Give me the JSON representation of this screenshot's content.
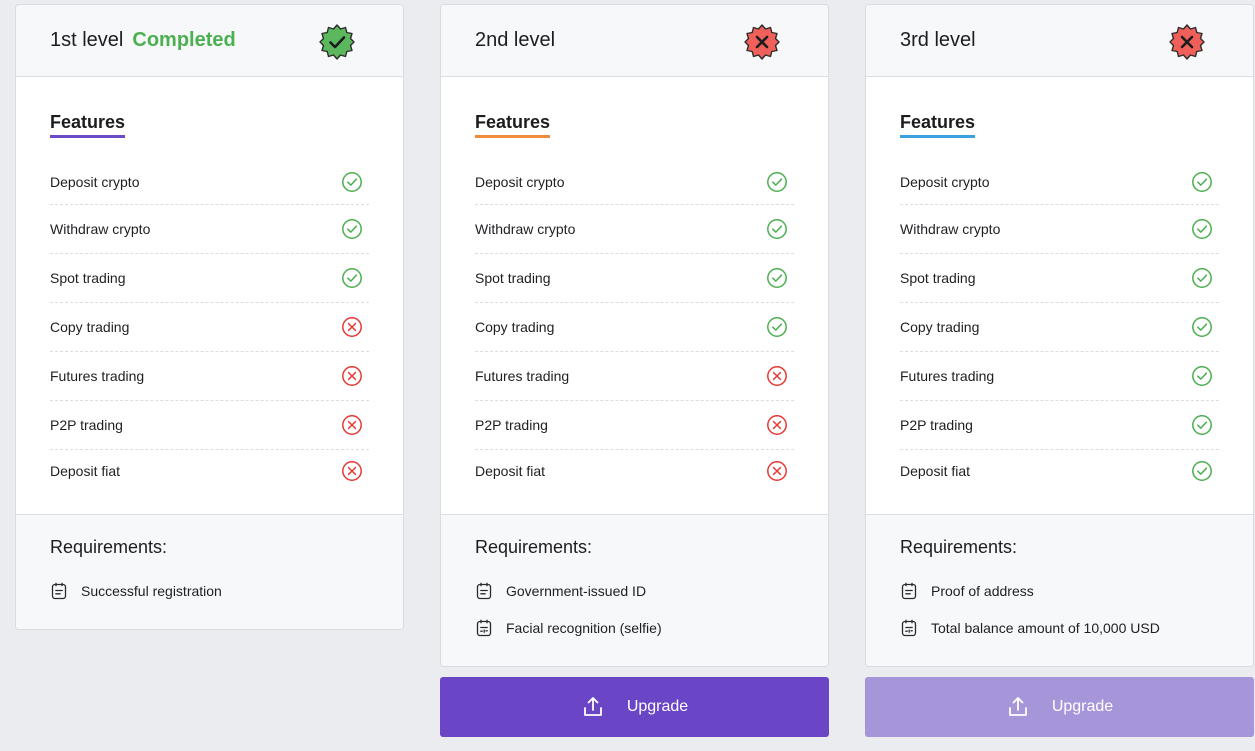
{
  "colors": {
    "ok": "#4caf50",
    "bad": "#e53935",
    "primary": "#6a46c6",
    "primary_disabled": "#a696d9",
    "underline_1": "#6b4bc6",
    "underline_2": "#f08c3a",
    "underline_3": "#3aa0e0"
  },
  "levels": [
    {
      "title": "1st level",
      "status_text": "Completed",
      "badge": "verified-check-icon",
      "features_title": "Features",
      "features": [
        {
          "label": "Deposit crypto",
          "enabled": true
        },
        {
          "label": "Withdraw crypto",
          "enabled": true
        },
        {
          "label": "Spot trading",
          "enabled": true
        },
        {
          "label": "Copy trading",
          "enabled": false
        },
        {
          "label": "Futures trading",
          "enabled": false
        },
        {
          "label": "P2P trading",
          "enabled": false
        },
        {
          "label": "Deposit fiat",
          "enabled": false
        }
      ],
      "requirements_title": "Requirements:",
      "requirements": [
        {
          "label": "Successful registration",
          "icon": "clipboard-icon"
        }
      ]
    },
    {
      "title": "2nd level",
      "badge": "not-verified-x-icon",
      "features_title": "Features",
      "features": [
        {
          "label": "Deposit crypto",
          "enabled": true
        },
        {
          "label": "Withdraw crypto",
          "enabled": true
        },
        {
          "label": "Spot trading",
          "enabled": true
        },
        {
          "label": "Copy trading",
          "enabled": true
        },
        {
          "label": "Futures trading",
          "enabled": false
        },
        {
          "label": "P2P trading",
          "enabled": false
        },
        {
          "label": "Deposit fiat",
          "enabled": false
        }
      ],
      "requirements_title": "Requirements:",
      "requirements": [
        {
          "label": "Government-issued ID",
          "icon": "clipboard-icon"
        },
        {
          "label": "Facial recognition (selfie)",
          "icon": "id-card-icon"
        }
      ],
      "upgrade_label": "Upgrade"
    },
    {
      "title": "3rd level",
      "badge": "not-verified-x-icon",
      "features_title": "Features",
      "features": [
        {
          "label": "Deposit crypto",
          "enabled": true
        },
        {
          "label": "Withdraw crypto",
          "enabled": true
        },
        {
          "label": "Spot trading",
          "enabled": true
        },
        {
          "label": "Copy trading",
          "enabled": true
        },
        {
          "label": "Futures trading",
          "enabled": true
        },
        {
          "label": "P2P trading",
          "enabled": true
        },
        {
          "label": "Deposit fiat",
          "enabled": true
        }
      ],
      "requirements_title": "Requirements:",
      "requirements": [
        {
          "label": "Proof of address",
          "icon": "clipboard-icon"
        },
        {
          "label": "Total balance amount of 10,000 USD",
          "icon": "id-card-icon"
        }
      ],
      "upgrade_label": "Upgrade"
    }
  ]
}
